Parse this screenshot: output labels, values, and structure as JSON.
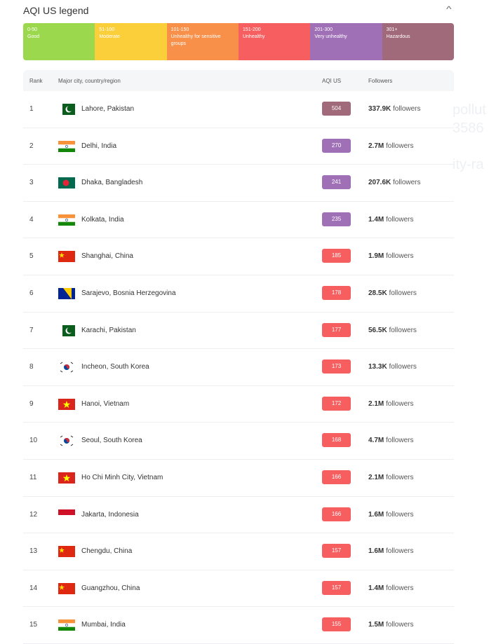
{
  "title": "AQI US legend",
  "legend": [
    {
      "range": "0-50",
      "label": "Good",
      "color": "#9cd84e"
    },
    {
      "range": "51-100",
      "label": "Moderate",
      "color": "#facf39"
    },
    {
      "range": "101-150",
      "label": "Unhealthy for sensitive groups",
      "color": "#f99049"
    },
    {
      "range": "151-200",
      "label": "Unhealthy",
      "color": "#f65e5f"
    },
    {
      "range": "201-300",
      "label": "Very unhealthy",
      "color": "#a070b6"
    },
    {
      "range": "301+",
      "label": "Hazardous",
      "color": "#a06a7b"
    }
  ],
  "headers": {
    "rank": "Rank",
    "city": "Major city, country/region",
    "aqi": "AQI US",
    "followers": "Followers"
  },
  "background_text": [
    "pollut",
    "3586",
    "ity-ra"
  ],
  "rows": [
    {
      "rank": "1",
      "flag": "pakistan",
      "city": "Lahore, Pakistan",
      "aqi": "504",
      "color": "#a06a7b",
      "followers": "337.9K",
      "suffix": "followers"
    },
    {
      "rank": "2",
      "flag": "india",
      "city": "Delhi, India",
      "aqi": "270",
      "color": "#a070b6",
      "followers": "2.7M",
      "suffix": "followers"
    },
    {
      "rank": "3",
      "flag": "bangladesh",
      "city": "Dhaka, Bangladesh",
      "aqi": "241",
      "color": "#a070b6",
      "followers": "207.6K",
      "suffix": "followers"
    },
    {
      "rank": "4",
      "flag": "india",
      "city": "Kolkata, India",
      "aqi": "235",
      "color": "#a070b6",
      "followers": "1.4M",
      "suffix": "followers"
    },
    {
      "rank": "5",
      "flag": "china",
      "city": "Shanghai, China",
      "aqi": "185",
      "color": "#f65e5f",
      "followers": "1.9M",
      "suffix": "followers"
    },
    {
      "rank": "6",
      "flag": "bosnia",
      "city": "Sarajevo, Bosnia Herzegovina",
      "aqi": "178",
      "color": "#f65e5f",
      "followers": "28.5K",
      "suffix": "followers"
    },
    {
      "rank": "7",
      "flag": "pakistan",
      "city": "Karachi, Pakistan",
      "aqi": "177",
      "color": "#f65e5f",
      "followers": "56.5K",
      "suffix": "followers"
    },
    {
      "rank": "8",
      "flag": "korea",
      "city": "Incheon, South Korea",
      "aqi": "173",
      "color": "#f65e5f",
      "followers": "13.3K",
      "suffix": "followers"
    },
    {
      "rank": "9",
      "flag": "vietnam",
      "city": "Hanoi, Vietnam",
      "aqi": "172",
      "color": "#f65e5f",
      "followers": "2.1M",
      "suffix": "followers"
    },
    {
      "rank": "10",
      "flag": "korea",
      "city": "Seoul, South Korea",
      "aqi": "168",
      "color": "#f65e5f",
      "followers": "4.7M",
      "suffix": "followers"
    },
    {
      "rank": "11",
      "flag": "vietnam",
      "city": "Ho Chi Minh City, Vietnam",
      "aqi": "166",
      "color": "#f65e5f",
      "followers": "2.1M",
      "suffix": "followers"
    },
    {
      "rank": "12",
      "flag": "indonesia",
      "city": "Jakarta, Indonesia",
      "aqi": "166",
      "color": "#f65e5f",
      "followers": "1.6M",
      "suffix": "followers"
    },
    {
      "rank": "13",
      "flag": "china",
      "city": "Chengdu, China",
      "aqi": "157",
      "color": "#f65e5f",
      "followers": "1.6M",
      "suffix": "followers"
    },
    {
      "rank": "14",
      "flag": "china",
      "city": "Guangzhou, China",
      "aqi": "157",
      "color": "#f65e5f",
      "followers": "1.4M",
      "suffix": "followers"
    },
    {
      "rank": "15",
      "flag": "india",
      "city": "Mumbai, India",
      "aqi": "155",
      "color": "#f65e5f",
      "followers": "1.5M",
      "suffix": "followers"
    }
  ]
}
